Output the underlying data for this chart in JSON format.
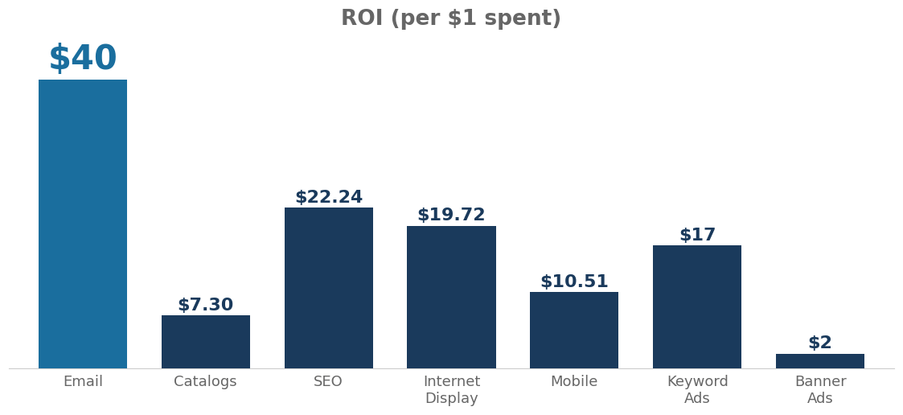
{
  "title": "ROI (per $1 spent)",
  "categories": [
    "Email",
    "Catalogs",
    "SEO",
    "Internet\nDisplay",
    "Mobile",
    "Keyword\nAds",
    "Banner\nAds"
  ],
  "values": [
    40,
    7.3,
    22.24,
    19.72,
    10.51,
    17,
    2
  ],
  "labels": [
    "$40",
    "$7.30",
    "$22.24",
    "$19.72",
    "$10.51",
    "$17",
    "$2"
  ],
  "bar_color_email": "#1a6e9e",
  "bar_color_rest": "#1a3a5c",
  "title_fontsize": 19,
  "title_color": "#666666",
  "label_fontsize_email": 30,
  "label_fontsize_rest": 16,
  "label_color_email": "#1a6e9e",
  "label_color_rest": "#1a3a5c",
  "tick_fontsize": 13,
  "tick_color": "#666666",
  "ylim": [
    0,
    46
  ],
  "bar_width": 0.72,
  "background_color": "#ffffff",
  "spine_color": "#cccccc"
}
